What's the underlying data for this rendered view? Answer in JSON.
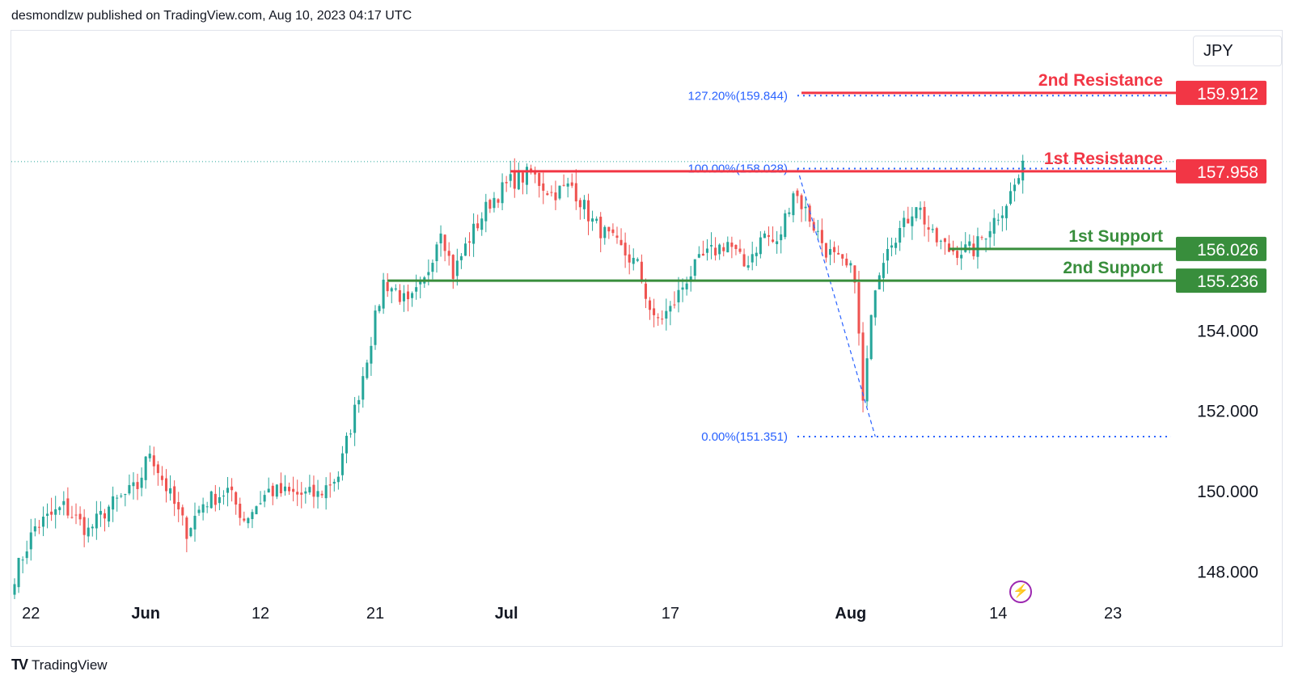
{
  "header": {
    "published": "desmondlzw published on TradingView.com, Aug 10, 2023 04:17 UTC"
  },
  "currency": "JPY",
  "footer": {
    "brand": "TradingView",
    "logo": "TV"
  },
  "bolt_icon": "lightning-icon",
  "colors": {
    "up": "#26a69a",
    "down": "#ef5350",
    "resistance": "#f23645",
    "support": "#388e3c",
    "fib": "#2962ff",
    "fib_text": "#2962ff"
  },
  "chart_data": {
    "type": "candlestick",
    "title": "",
    "ylim": [
      147.0,
      161.3
    ],
    "y_ticks": [
      148.0,
      150.0,
      152.0,
      154.0
    ],
    "x_ticks": [
      {
        "label": "22",
        "index": 4,
        "bold": false
      },
      {
        "label": "Jun",
        "index": 32,
        "bold": true
      },
      {
        "label": "12",
        "index": 60,
        "bold": false
      },
      {
        "label": "21",
        "index": 88,
        "bold": false
      },
      {
        "label": "Jul",
        "index": 120,
        "bold": true
      },
      {
        "label": "17",
        "index": 160,
        "bold": false
      },
      {
        "label": "Aug",
        "index": 204,
        "bold": true
      },
      {
        "label": "14",
        "index": 240,
        "bold": false
      },
      {
        "label": "23",
        "index": 268,
        "bold": false
      }
    ],
    "close_path": [
      [
        0,
        147.9
      ],
      [
        5,
        149.1
      ],
      [
        12,
        149.6
      ],
      [
        18,
        149.0
      ],
      [
        23,
        149.6
      ],
      [
        30,
        150.1
      ],
      [
        33,
        151.0
      ],
      [
        36,
        150.3
      ],
      [
        42,
        149.0
      ],
      [
        46,
        149.7
      ],
      [
        52,
        150.0
      ],
      [
        56,
        149.3
      ],
      [
        62,
        150.0
      ],
      [
        69,
        149.9
      ],
      [
        74,
        149.9
      ],
      [
        79,
        150.4
      ],
      [
        83,
        152.0
      ],
      [
        87,
        153.8
      ],
      [
        90,
        155.2
      ],
      [
        93,
        155.0
      ],
      [
        96,
        154.6
      ],
      [
        100,
        155.2
      ],
      [
        104,
        156.6
      ],
      [
        107,
        155.4
      ],
      [
        111,
        156.3
      ],
      [
        116,
        157.2
      ],
      [
        121,
        157.7
      ],
      [
        126,
        157.9
      ],
      [
        131,
        157.4
      ],
      [
        136,
        157.6
      ],
      [
        141,
        156.7
      ],
      [
        148,
        156.0
      ],
      [
        152,
        155.6
      ],
      [
        156,
        154.2
      ],
      [
        160,
        154.5
      ],
      [
        164,
        155.3
      ],
      [
        168,
        155.8
      ],
      [
        174,
        156.2
      ],
      [
        178,
        155.6
      ],
      [
        183,
        156.4
      ],
      [
        186,
        156.1
      ],
      [
        190,
        157.5
      ],
      [
        194,
        156.8
      ],
      [
        198,
        156.0
      ],
      [
        202,
        155.6
      ],
      [
        205,
        155.4
      ],
      [
        207,
        152.2
      ],
      [
        210,
        155.2
      ],
      [
        213,
        156.2
      ],
      [
        217,
        156.6
      ],
      [
        220,
        157.2
      ],
      [
        224,
        156.3
      ],
      [
        228,
        156.0
      ],
      [
        234,
        156.0
      ],
      [
        238,
        156.6
      ],
      [
        242,
        157.2
      ],
      [
        246,
        158.0
      ]
    ],
    "levels": [
      {
        "name": "2nd Resistance",
        "value": 159.912,
        "label": "159.912",
        "kind": "resistance",
        "start_index": 192
      },
      {
        "name": "1st Resistance",
        "value": 157.958,
        "label": "157.958",
        "kind": "resistance",
        "start_index": 121
      },
      {
        "name": "1st Support",
        "value": 156.026,
        "label": "156.026",
        "kind": "support",
        "start_index": 228
      },
      {
        "name": "2nd Support",
        "value": 155.236,
        "label": "155.236",
        "kind": "support",
        "start_index": 91
      }
    ],
    "fib": {
      "from_index": 191,
      "to_index": 210,
      "high": 158.028,
      "low": 151.351,
      "levels": [
        {
          "label": "127.20%(159.844)",
          "value": 159.844
        },
        {
          "label": "100.00%(158.028)",
          "value": 158.028
        },
        {
          "label": "0.00%(151.351)",
          "value": 151.351
        }
      ]
    },
    "last_price_line": 158.2
  }
}
